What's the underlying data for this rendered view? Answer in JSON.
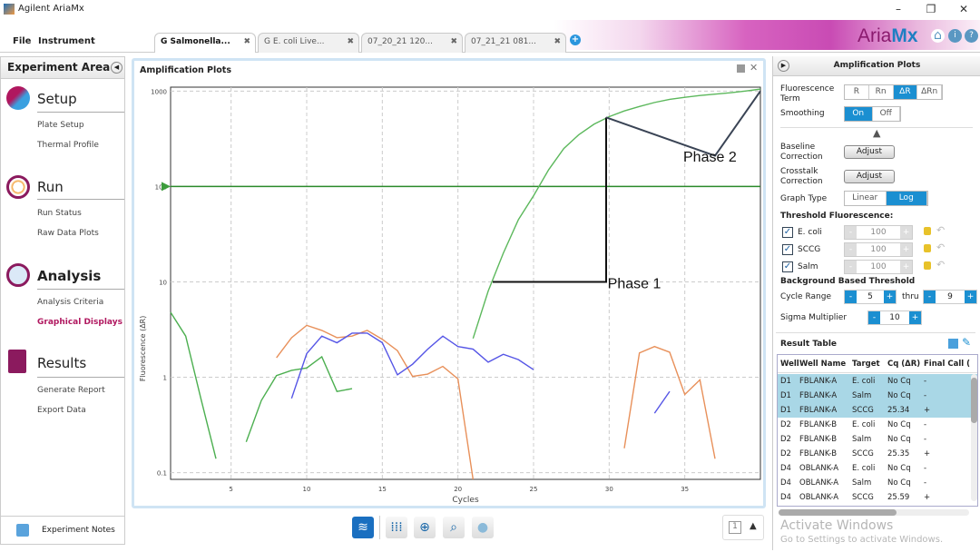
{
  "app": {
    "title": "Agilent AriaMx",
    "window_controls": [
      "–",
      "❐",
      "✕"
    ]
  },
  "menu": [
    "File",
    "Instrument"
  ],
  "tabs": [
    {
      "label": "G Salmonella...",
      "active": true
    },
    {
      "label": "G E. coli Live..."
    },
    {
      "label": "07_20_21 120..."
    },
    {
      "label": "07_21_21 081..."
    }
  ],
  "brand": {
    "logo_a": "Aria",
    "logo_b": "Mx"
  },
  "sidebar": {
    "title": "Experiment Area",
    "sections": [
      {
        "name": "Setup",
        "items": [
          "Plate Setup",
          "Thermal Profile"
        ]
      },
      {
        "name": "Run",
        "items": [
          "Run Status",
          "Raw Data Plots"
        ]
      },
      {
        "name": "Analysis",
        "items": [
          "Analysis Criteria",
          "Graphical Displays"
        ],
        "selected": "Graphical Displays"
      },
      {
        "name": "Results",
        "items": [
          "Generate Report",
          "Export Data"
        ]
      }
    ],
    "notes": "Experiment Notes"
  },
  "chart_panel": {
    "title": "Amplification Plots"
  },
  "chart_data": {
    "type": "line",
    "xlabel": "Cycles",
    "ylabel": "Fluorescence (ΔR)",
    "xlim": [
      1,
      40
    ],
    "ylim": [
      0.085,
      1100
    ],
    "yscale": "log",
    "xticks": [
      5,
      10,
      15,
      20,
      25,
      30,
      35
    ],
    "yticks": [
      {
        "v": 0.1,
        "l": "0.1"
      },
      {
        "v": 1,
        "l": "1"
      },
      {
        "v": 10,
        "l": "10"
      },
      {
        "v": 100,
        "l": "100"
      },
      {
        "v": 1000,
        "l": "1000"
      }
    ],
    "grid": true,
    "threshold": {
      "value": 100,
      "color": "#2a8a2a"
    },
    "series": [
      {
        "color": "#4caf50",
        "points": [
          [
            1,
            4.8
          ],
          [
            2,
            2.7
          ],
          [
            3,
            0.6
          ],
          [
            4,
            0.14
          ]
        ]
      },
      {
        "color": "#4caf50",
        "points": [
          [
            6,
            0.21
          ],
          [
            7,
            0.57
          ],
          [
            8,
            1.04
          ],
          [
            9,
            1.18
          ],
          [
            10,
            1.25
          ],
          [
            11,
            1.64
          ],
          [
            12,
            0.71
          ],
          [
            13,
            0.76
          ]
        ]
      },
      {
        "color": "#e8905a",
        "points": [
          [
            8,
            1.6
          ],
          [
            9,
            2.6
          ],
          [
            10,
            3.5
          ],
          [
            11,
            3.1
          ],
          [
            12,
            2.6
          ],
          [
            13,
            2.7
          ],
          [
            14,
            3.1
          ],
          [
            15,
            2.5
          ],
          [
            16,
            1.9
          ],
          [
            17,
            1.02
          ],
          [
            18,
            1.08
          ],
          [
            19,
            1.3
          ],
          [
            20,
            0.96
          ],
          [
            21,
            0.085
          ]
        ]
      },
      {
        "color": "#5555e6",
        "points": [
          [
            9,
            0.6
          ],
          [
            10,
            1.77
          ],
          [
            11,
            2.7
          ],
          [
            12,
            2.3
          ],
          [
            13,
            2.9
          ],
          [
            14,
            2.9
          ],
          [
            15,
            2.3
          ],
          [
            16,
            1.06
          ],
          [
            17,
            1.37
          ],
          [
            18,
            1.97
          ],
          [
            19,
            2.7
          ],
          [
            20,
            2.1
          ],
          [
            21,
            1.97
          ],
          [
            22,
            1.44
          ],
          [
            23,
            1.74
          ],
          [
            24,
            1.53
          ],
          [
            25,
            1.2
          ]
        ]
      },
      {
        "color": "#5cb85c",
        "points": [
          [
            21,
            2.55
          ],
          [
            22,
            8
          ],
          [
            23,
            20
          ],
          [
            24,
            45
          ],
          [
            25,
            80
          ],
          [
            26,
            150
          ],
          [
            27,
            250
          ],
          [
            28,
            350
          ],
          [
            29,
            450
          ],
          [
            30,
            540
          ],
          [
            31,
            620
          ],
          [
            32,
            690
          ],
          [
            33,
            760
          ],
          [
            34,
            820
          ],
          [
            35,
            860
          ],
          [
            36,
            900
          ],
          [
            37,
            930
          ],
          [
            38,
            960
          ],
          [
            39,
            1000
          ],
          [
            40,
            1050
          ]
        ]
      },
      {
        "color": "#e8905a",
        "points": [
          [
            31,
            0.18
          ],
          [
            32,
            1.8
          ],
          [
            33,
            2.1
          ],
          [
            34,
            1.83
          ],
          [
            35,
            0.66
          ],
          [
            36,
            0.94
          ],
          [
            37,
            0.14
          ]
        ]
      },
      {
        "color": "#5555e6",
        "points": [
          [
            33,
            0.42
          ],
          [
            34,
            0.71
          ]
        ]
      }
    ],
    "annotations": [
      {
        "label": "Phase 1",
        "color": "#111",
        "points": [
          [
            22.3,
            10
          ],
          [
            29.8,
            10
          ],
          [
            29.8,
            530
          ]
        ],
        "label_at": [
          29.9,
          9
        ]
      },
      {
        "label": "Phase 2",
        "color": "#3a4455",
        "points": [
          [
            29.8,
            530
          ],
          [
            37,
            210
          ],
          [
            40,
            1000
          ]
        ],
        "label_at": [
          34.9,
          190
        ]
      }
    ]
  },
  "right_panel": {
    "title": "Amplification Plots",
    "fluorescence_term": {
      "label": "Fluorescence Term",
      "options": [
        "R",
        "Rn",
        "ΔR",
        "ΔRn"
      ],
      "selected": "ΔR"
    },
    "smoothing": {
      "label": "Smoothing",
      "options": [
        "On",
        "Off"
      ],
      "selected": "On"
    },
    "baseline": {
      "label": "Baseline Correction",
      "button": "Adjust"
    },
    "crosstalk": {
      "label": "Crosstalk Correction",
      "button": "Adjust"
    },
    "graph_type": {
      "label": "Graph Type",
      "options": [
        "Linear",
        "Log"
      ],
      "selected": "Log"
    },
    "threshold_title": "Threshold Fluorescence:",
    "thresholds": [
      {
        "name": "E. coli",
        "value": "100",
        "checked": true
      },
      {
        "name": "SCCG",
        "value": "100",
        "checked": true
      },
      {
        "name": "Salm",
        "value": "100",
        "checked": true
      }
    ],
    "bg_title": "Background Based Threshold",
    "cycle_range": {
      "label": "Cycle Range",
      "from": "5",
      "thru_label": "thru",
      "to": "9"
    },
    "sigma": {
      "label": "Sigma Multiplier",
      "value": "10"
    },
    "result_table": {
      "title": "Result Table",
      "columns": [
        "Well",
        "Well Name",
        "Target",
        "Cq (ΔR)",
        "Final Call ("
      ],
      "rows": [
        [
          "D1",
          "FBLANK-A",
          "E. coli",
          "No Cq",
          "-"
        ],
        [
          "D1",
          "FBLANK-A",
          "Salm",
          "No Cq",
          "-"
        ],
        [
          "D1",
          "FBLANK-A",
          "SCCG",
          "25.34",
          "+"
        ],
        [
          "D2",
          "FBLANK-B",
          "E. coli",
          "No Cq",
          "-"
        ],
        [
          "D2",
          "FBLANK-B",
          "Salm",
          "No Cq",
          "-"
        ],
        [
          "D2",
          "FBLANK-B",
          "SCCG",
          "25.35",
          "+"
        ],
        [
          "D4",
          "OBLANK-A",
          "E. coli",
          "No Cq",
          "-"
        ],
        [
          "D4",
          "OBLANK-A",
          "Salm",
          "No Cq",
          "-"
        ],
        [
          "D4",
          "OBLANK-A",
          "SCCG",
          "25.59",
          "+"
        ]
      ],
      "selected_rows": 3
    }
  },
  "watermark": {
    "line1": "Activate Windows",
    "line2": "Go to Settings to activate Windows."
  },
  "bottom": {
    "page": "1"
  }
}
